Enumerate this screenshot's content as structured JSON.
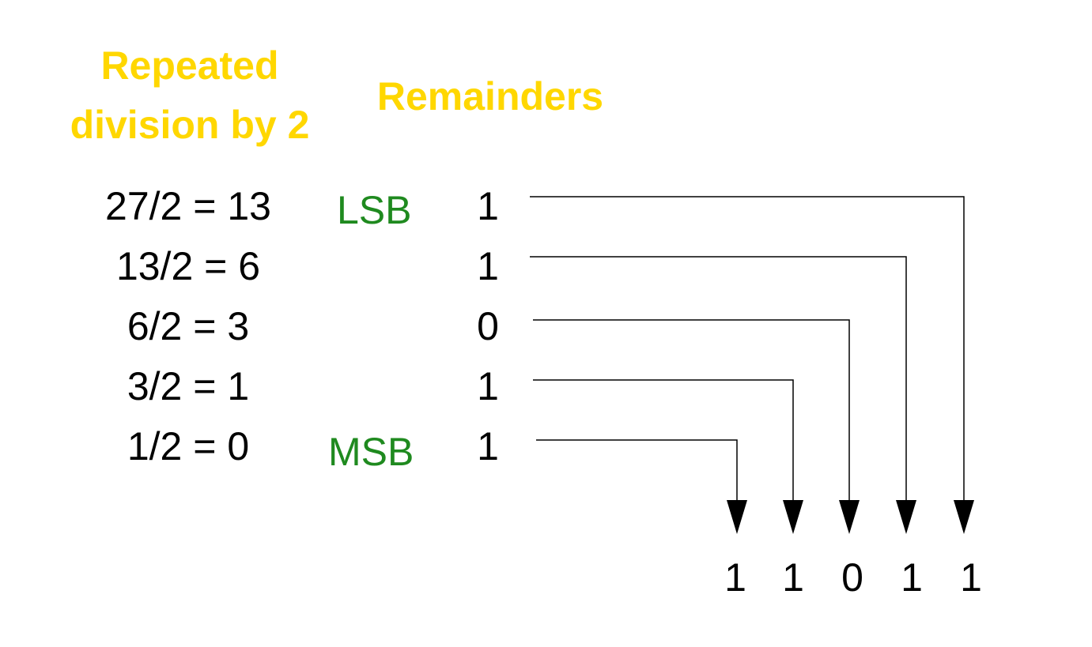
{
  "headers": {
    "division_line1": "Repeated",
    "division_line2": "division by 2",
    "remainders": "Remainders"
  },
  "markers": {
    "lsb": "LSB",
    "msb": "MSB"
  },
  "steps": [
    {
      "division": "27/2 = 13",
      "remainder": "1"
    },
    {
      "division": "13/2 = 6",
      "remainder": "1"
    },
    {
      "division": "6/2 = 3",
      "remainder": "0"
    },
    {
      "division": "3/2 = 1",
      "remainder": "1"
    },
    {
      "division": "1/2 = 0",
      "remainder": "1"
    }
  ],
  "result_bits": [
    "1",
    "1",
    "0",
    "1",
    "1"
  ],
  "colors": {
    "header": "#FFD700",
    "marker": "#1f8a1f",
    "text": "#000000"
  }
}
